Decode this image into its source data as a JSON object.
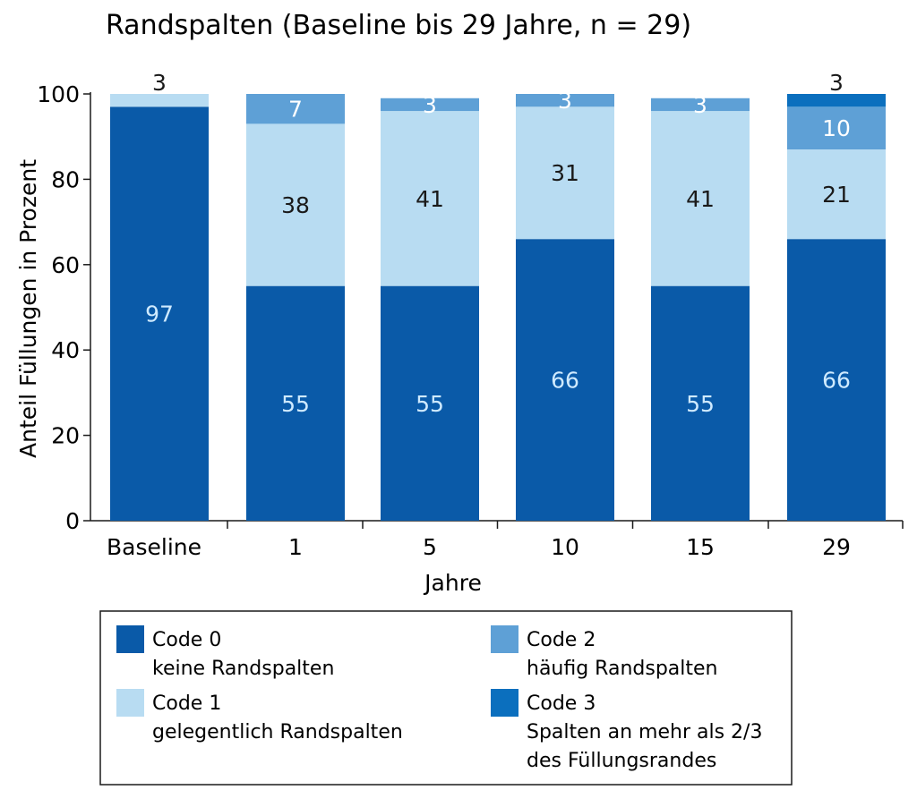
{
  "chart_data": {
    "type": "bar",
    "stacked": true,
    "title": "Randspalten (Baseline bis 29 Jahre, n = 29)",
    "xlabel": "Jahre",
    "ylabel": "Anteil Füllungen in Prozent",
    "ylim": [
      0,
      100
    ],
    "yticks": [
      0,
      20,
      40,
      60,
      80,
      100
    ],
    "categories": [
      "Baseline",
      "1",
      "5",
      "10",
      "15",
      "29"
    ],
    "series": [
      {
        "name": "Code 0",
        "description": "keine Randspalten",
        "color": "#0a5aa8",
        "label_color": "#cfeaff",
        "values": [
          97,
          55,
          55,
          66,
          55,
          66
        ]
      },
      {
        "name": "Code 1",
        "description": "gelegentlich Randspalten",
        "color": "#b8dcf2",
        "label_color": "#1a1a1a",
        "values": [
          3,
          38,
          41,
          31,
          41,
          21
        ]
      },
      {
        "name": "Code 2",
        "description": "häufig Randspalten",
        "color": "#5ea0d6",
        "label_color": "#ffffff",
        "values": [
          0,
          7,
          3,
          3,
          3,
          10
        ]
      },
      {
        "name": "Code 3",
        "description": "Spalten an mehr als 2/3 des Füllungsrandes",
        "color": "#0b6fbe",
        "label_color": "#1a1a1a",
        "values": [
          0,
          0,
          0,
          0,
          0,
          3
        ]
      }
    ],
    "segment_labels": [
      [
        {
          "series": 0,
          "text": "97"
        },
        {
          "series": 1,
          "text": "3",
          "above": true
        }
      ],
      [
        {
          "series": 0,
          "text": "55"
        },
        {
          "series": 1,
          "text": "38"
        },
        {
          "series": 2,
          "text": "7"
        }
      ],
      [
        {
          "series": 0,
          "text": "55"
        },
        {
          "series": 1,
          "text": "41"
        },
        {
          "series": 2,
          "text": "3"
        }
      ],
      [
        {
          "series": 0,
          "text": "66"
        },
        {
          "series": 1,
          "text": "31"
        },
        {
          "series": 2,
          "text": "3"
        }
      ],
      [
        {
          "series": 0,
          "text": "55"
        },
        {
          "series": 1,
          "text": "41"
        },
        {
          "series": 2,
          "text": "3"
        }
      ],
      [
        {
          "series": 0,
          "text": "66"
        },
        {
          "series": 1,
          "text": "21"
        },
        {
          "series": 2,
          "text": "10"
        },
        {
          "series": 3,
          "text": "3",
          "above": true
        }
      ]
    ],
    "legend": [
      {
        "name": "Code 0",
        "lines": [
          "keine Randspalten"
        ]
      },
      {
        "name": "Code 2",
        "lines": [
          "häufig Randspalten"
        ]
      },
      {
        "name": "Code 1",
        "lines": [
          "gelegentlich Randspalten"
        ]
      },
      {
        "name": "Code 3",
        "lines": [
          "Spalten an mehr als 2/3",
          "des Füllungsrandes"
        ]
      }
    ]
  }
}
